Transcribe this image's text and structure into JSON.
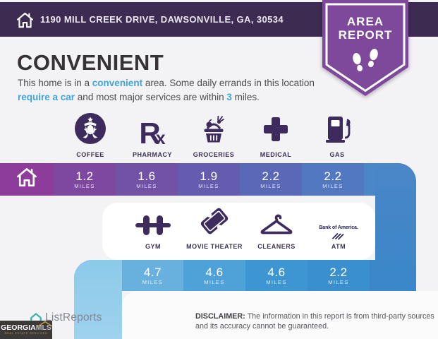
{
  "header": {
    "address": "1190 MILL CREEK DRIVE, DAWSONVILLE, GA, 30534",
    "badge": {
      "line1": "AREA",
      "line2": "REPORT",
      "icon": "footprints-icon"
    }
  },
  "intro": {
    "title": "CONVENIENT",
    "segments": [
      {
        "text": "This home is in a ",
        "accent": false
      },
      {
        "text": "convenient",
        "accent": true
      },
      {
        "text": " area. Some daily errands in this location ",
        "accent": false
      },
      {
        "text": "require a car",
        "accent": true
      },
      {
        "text": " and most major services are within ",
        "accent": false
      },
      {
        "text": "3",
        "accent": true
      },
      {
        "text": " miles.",
        "accent": false
      }
    ]
  },
  "units": {
    "miles": "MILES"
  },
  "row1": {
    "items": [
      {
        "label": "COFFEE",
        "miles": "1.2",
        "icon": "starbucks-coffee-icon"
      },
      {
        "label": "PHARMACY",
        "miles": "1.6",
        "icon": "rx-pharmacy-icon"
      },
      {
        "label": "GROCERIES",
        "miles": "1.9",
        "icon": "grocery-basket-icon"
      },
      {
        "label": "MEDICAL",
        "miles": "2.2",
        "icon": "medical-cross-icon"
      },
      {
        "label": "GAS",
        "miles": "2.2",
        "icon": "gas-pump-icon"
      }
    ]
  },
  "row2": {
    "items": [
      {
        "label": "GYM",
        "miles": "4.7",
        "icon": "dumbbell-icon"
      },
      {
        "label": "MOVIE THEATER",
        "miles": "4.6",
        "icon": "movie-ticket-icon"
      },
      {
        "label": "CLEANERS",
        "miles": "4.6",
        "icon": "hanger-icon"
      },
      {
        "label": "ATM",
        "miles": "2.2",
        "icon": "bank-of-america-icon",
        "brand_text": "Bank of America."
      }
    ]
  },
  "icons": {
    "rx_r": "R",
    "rx_x": "x"
  },
  "footer": {
    "listreports": "ListReports",
    "georgiamls": {
      "line1": "GEORGIA",
      "line2": "MLS",
      "sub": "REAL ESTATE SERVICES"
    },
    "disclaimer_label": "DISCLAIMER:",
    "disclaimer_text": " The information in this report is from third-party sources and its accuracy cannot be guaranteed."
  },
  "colors": {
    "header_bar": "#3d2b52",
    "badge_purple": "#7e489b",
    "accent_blue": "#3fa4dc",
    "icon_purple": "#3d2b5e",
    "row1_cells": [
      "#8d3c9c",
      "#7f48a0",
      "#7152a7",
      "#655caf",
      "#5a68b8",
      "#5378c2",
      "#4a86c8"
    ],
    "row2_cells": [
      "#8ccae9",
      "#68b1df",
      "#4ea2d8",
      "#3d95d2",
      "#3a8fce",
      "#3a87c9"
    ]
  }
}
